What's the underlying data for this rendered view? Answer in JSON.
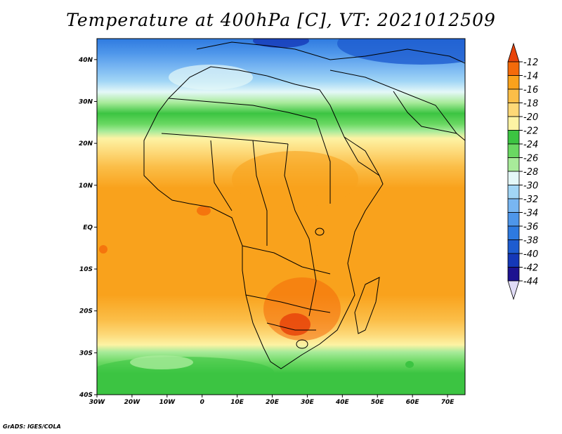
{
  "title": "Temperature at 400hPa [C], VT: 2021012509",
  "credit": "GrADS: IGES/COLA",
  "map": {
    "lat_labels": [
      "40N",
      "30N",
      "20N",
      "10N",
      "EQ",
      "10S",
      "20S",
      "30S",
      "40S"
    ],
    "lon_labels": [
      "30W",
      "20W",
      "10W",
      "0",
      "10E",
      "20E",
      "30E",
      "40E",
      "50E",
      "60E",
      "70E"
    ],
    "lat_range": [
      -40,
      45
    ],
    "lon_range": [
      -30,
      75
    ]
  },
  "colorbar": {
    "labels": [
      "-12",
      "-14",
      "-16",
      "-18",
      "-20",
      "-22",
      "-24",
      "-26",
      "-28",
      "-30",
      "-32",
      "-34",
      "-36",
      "-38",
      "-40",
      "-42",
      "-44"
    ],
    "colors": [
      "#e8440a",
      "#f46a0a",
      "#f9a21c",
      "#fbbe48",
      "#fdd877",
      "#fdf3a4",
      "#3cc442",
      "#6ad862",
      "#a8eb9a",
      "#e4f8f8",
      "#a2d6f6",
      "#78b6f2",
      "#4e96ea",
      "#2e7ae0",
      "#1e5cd0",
      "#1538b8",
      "#1d1290",
      "#e0dcf6"
    ]
  },
  "colors": {
    "land_outline": "#000000",
    "axis": "#000000"
  }
}
